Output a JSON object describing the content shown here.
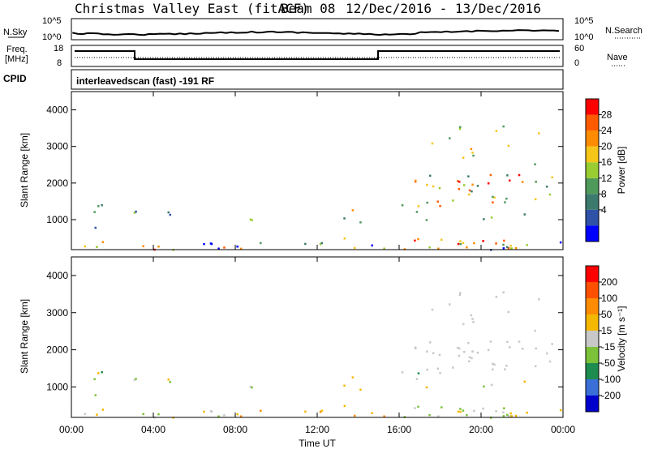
{
  "header": {
    "station": "Christmas Valley East (fitACF)",
    "beam": "Beam 08",
    "dates": "12/Dec/2016 - 13/Dec/2016"
  },
  "panels": {
    "nsky_label": "N.Sky",
    "nsky_ticks": [
      "10^5",
      "10^0"
    ],
    "nsearch_label": "N.Search",
    "nsearch_ticks": [
      "10^5",
      "10^0"
    ],
    "freq_label_1": "Freq.",
    "freq_label_2": "[MHz]",
    "freq_ticks": [
      "18",
      "8"
    ],
    "nave_label": "Nave",
    "nave_ticks": [
      "60",
      "0"
    ],
    "cpid_label": "CPID",
    "cpid_value": "interleavedscan (fast) -191 RF"
  },
  "colors": {
    "power_scale": [
      "#0000ff",
      "#2f52a8",
      "#3d7a6e",
      "#4f9a5a",
      "#9acd32",
      "#f5c518",
      "#ff8c00",
      "#ff5a00",
      "#ff0000"
    ],
    "velocity_scale": [
      "#0000cd",
      "#3a6fd8",
      "#1e8c4e",
      "#7bc23a",
      "#c8c8c8",
      "#f5b800",
      "#ff8c00",
      "#ff5000",
      "#ff0000"
    ]
  },
  "chart_data": [
    {
      "type": "heatmap",
      "name": "Power",
      "ylabel": "Slant Range [km]",
      "yticks": [
        "4000",
        "3000",
        "2000",
        "1000"
      ],
      "ylim": [
        180,
        4500
      ],
      "colorbar_label": "Power [dB]",
      "colorbar_ticks": [
        "28",
        "24",
        "20",
        "16",
        "12",
        "8",
        "4"
      ],
      "colorbar_range": [
        0,
        30
      ]
    },
    {
      "type": "heatmap",
      "name": "Velocity",
      "ylabel": "Slant Range [km]",
      "yticks": [
        "4000",
        "3000",
        "2000",
        "1000"
      ],
      "ylim": [
        180,
        4500
      ],
      "colorbar_label": "Velocity [m s⁻¹]",
      "colorbar_ticks": [
        "200",
        "100",
        "50",
        "15",
        "-15",
        "-50",
        "-100",
        "-200"
      ]
    }
  ],
  "xaxis": {
    "label": "Time UT",
    "ticks": [
      "00:00",
      "04:00",
      "08:00",
      "12:00",
      "16:00",
      "20:00",
      "00:00"
    ]
  }
}
